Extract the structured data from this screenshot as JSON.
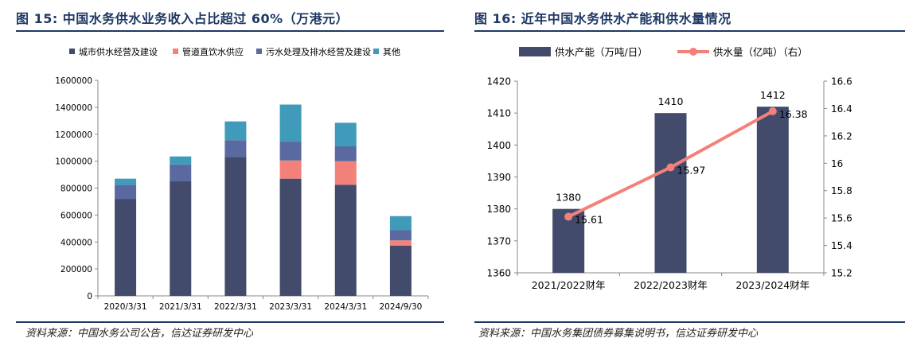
{
  "left": {
    "title": "图 15:  中国水务供水业务收入占比超过 60%（万港元）",
    "source": "资料来源：中国水务公司公告，信达证券研发中心"
  },
  "right": {
    "title": "图 16:  近年中国水务供水产能和供水量情况",
    "source": "资料来源：中国水务集团债券募集说明书，信达证券研发中心"
  },
  "chart_data": [
    {
      "type": "bar",
      "stacked": true,
      "title": "中国水务供水业务收入占比超过 60%（万港元）",
      "categories": [
        "2020/3/31",
        "2021/3/31",
        "2022/3/31",
        "2023/3/31",
        "2024/3/31",
        "2024/9/30"
      ],
      "series": [
        {
          "name": "城市供水经营及建设",
          "color": "#424b6b",
          "values": [
            720000,
            850000,
            1030000,
            870000,
            825000,
            372000
          ]
        },
        {
          "name": "管道直饮水供应",
          "color": "#f4807a",
          "values": [
            0,
            0,
            0,
            135000,
            175000,
            40000
          ]
        },
        {
          "name": "污水处理及排水经营及建设",
          "color": "#5a699f",
          "values": [
            105000,
            125000,
            125000,
            140000,
            110000,
            75000
          ]
        },
        {
          "name": "其他",
          "color": "#3f9bb9",
          "values": [
            45000,
            60000,
            140000,
            275000,
            175000,
            105000
          ]
        }
      ],
      "ylim": [
        0,
        1600000
      ],
      "yticks": [
        0,
        200000,
        400000,
        600000,
        800000,
        1000000,
        1200000,
        1400000,
        1600000
      ],
      "legend": "top"
    },
    {
      "type": "bar+line",
      "title": "近年中国水务供水产能和供水量情况",
      "categories": [
        "2021/2022财年",
        "2022/2023财年",
        "2023/2024财年"
      ],
      "bar": {
        "name": "供水产能（万吨/日）",
        "color": "#424b6b",
        "values": [
          1380,
          1410,
          1412
        ],
        "labels": [
          "1380",
          "1410",
          "1412"
        ]
      },
      "line": {
        "name": "供水量（亿吨）（右）",
        "color": "#f4807a",
        "values": [
          15.61,
          15.97,
          16.38
        ],
        "labels": [
          "15.61",
          "15.97",
          "16.38"
        ]
      },
      "ylim_left": [
        1360,
        1420
      ],
      "yticks_left": [
        "1360",
        "1370",
        "1380",
        "1390",
        "1400",
        "1410",
        "1420"
      ],
      "ylim_right": [
        15.2,
        16.6
      ],
      "yticks_right": [
        "15.2",
        "15.4",
        "15.6",
        "15.8",
        "16",
        "16.2",
        "16.4",
        "16.6"
      ],
      "legend": "top"
    }
  ]
}
